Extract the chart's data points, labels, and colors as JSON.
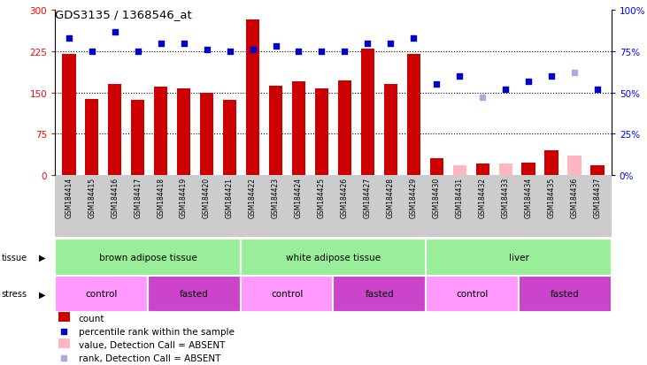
{
  "title": "GDS3135 / 1368546_at",
  "samples": [
    "GSM184414",
    "GSM184415",
    "GSM184416",
    "GSM184417",
    "GSM184418",
    "GSM184419",
    "GSM184420",
    "GSM184421",
    "GSM184422",
    "GSM184423",
    "GSM184424",
    "GSM184425",
    "GSM184426",
    "GSM184427",
    "GSM184428",
    "GSM184429",
    "GSM184430",
    "GSM184431",
    "GSM184432",
    "GSM184433",
    "GSM184434",
    "GSM184435",
    "GSM184436",
    "GSM184437"
  ],
  "counts": [
    220,
    138,
    165,
    137,
    160,
    157,
    150,
    137,
    283,
    162,
    170,
    157,
    172,
    230,
    165,
    220,
    30,
    18,
    20,
    20,
    22,
    45,
    35,
    18
  ],
  "absent_counts": [
    false,
    false,
    false,
    false,
    false,
    false,
    false,
    false,
    false,
    false,
    false,
    false,
    false,
    false,
    false,
    false,
    false,
    true,
    false,
    true,
    false,
    false,
    true,
    false
  ],
  "ranks": [
    83,
    75,
    87,
    75,
    80,
    80,
    76,
    75,
    76,
    78,
    75,
    75,
    75,
    80,
    80,
    83,
    55,
    60,
    47,
    52,
    57,
    60,
    62,
    52
  ],
  "absent_ranks": [
    false,
    false,
    false,
    false,
    false,
    false,
    false,
    false,
    false,
    false,
    false,
    false,
    false,
    false,
    false,
    false,
    false,
    false,
    true,
    false,
    false,
    false,
    true,
    false
  ],
  "tissue_groups": [
    {
      "label": "brown adipose tissue",
      "start": 0,
      "end": 7
    },
    {
      "label": "white adipose tissue",
      "start": 8,
      "end": 15
    },
    {
      "label": "liver",
      "start": 16,
      "end": 23
    }
  ],
  "stress_groups": [
    {
      "label": "control",
      "start": 0,
      "end": 3,
      "color": "#FF99FF"
    },
    {
      "label": "fasted",
      "start": 4,
      "end": 7,
      "color": "#CC44CC"
    },
    {
      "label": "control",
      "start": 8,
      "end": 11,
      "color": "#FF99FF"
    },
    {
      "label": "fasted",
      "start": 12,
      "end": 15,
      "color": "#CC44CC"
    },
    {
      "label": "control",
      "start": 16,
      "end": 19,
      "color": "#FF99FF"
    },
    {
      "label": "fasted",
      "start": 20,
      "end": 23,
      "color": "#CC44CC"
    }
  ],
  "ylim_left": [
    0,
    300
  ],
  "ylim_right": [
    0,
    100
  ],
  "yticks_left": [
    0,
    75,
    150,
    225,
    300
  ],
  "yticks_right": [
    0,
    25,
    50,
    75,
    100
  ],
  "bar_color": "#CC0000",
  "absent_bar_color": "#FFB6C1",
  "rank_color": "#0000CC",
  "absent_rank_color": "#AAAADD",
  "tick_bg_color": "#CCCCCC",
  "tissue_color": "#99EE99",
  "legend_items": [
    {
      "label": "count",
      "color": "#CC0000",
      "type": "bar"
    },
    {
      "label": "percentile rank within the sample",
      "color": "#0000CC",
      "type": "square"
    },
    {
      "label": "value, Detection Call = ABSENT",
      "color": "#FFB6C1",
      "type": "bar"
    },
    {
      "label": "rank, Detection Call = ABSENT",
      "color": "#AAAADD",
      "type": "square"
    }
  ]
}
